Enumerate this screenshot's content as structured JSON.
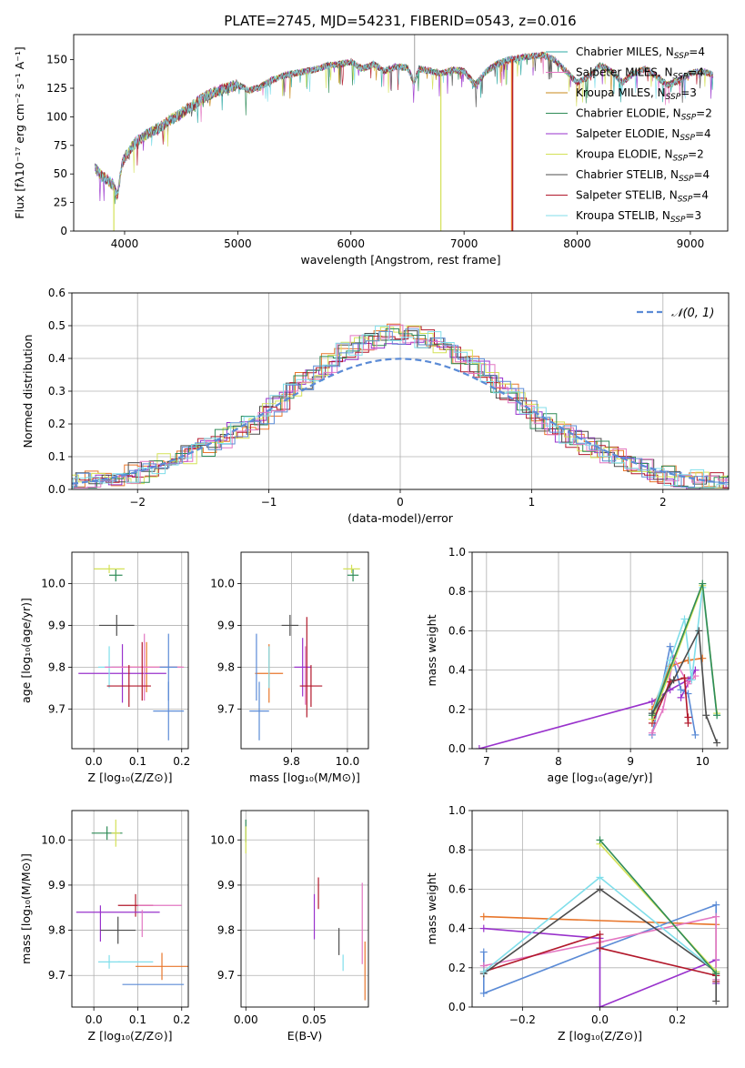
{
  "chart_data": [
    {
      "id": "spectrum",
      "type": "line",
      "title": "PLATE=2745, MJD=54231, FIBERID=0543, z=0.016",
      "xlabel": "wavelength [Angstrom, rest frame]",
      "ylabel": "Flux [fλ10⁻¹⁷ erg cm⁻² s⁻¹ A⁻¹]",
      "xlim": [
        3550,
        9330
      ],
      "ylim": [
        0,
        172
      ],
      "xticks": [
        4000,
        5000,
        6000,
        7000,
        8000,
        9000
      ],
      "yticks": [
        0,
        25,
        50,
        75,
        100,
        125,
        150
      ],
      "grid": false,
      "legend": "upper right",
      "spectrum_x": [
        3740,
        3800,
        3850,
        3900,
        3935,
        3980,
        4050,
        4100,
        4200,
        4300,
        4400,
        4500,
        4600,
        4700,
        4800,
        4900,
        5000,
        5100,
        5200,
        5300,
        5400,
        5500,
        5600,
        5700,
        5800,
        5900,
        6000,
        6100,
        6200,
        6300,
        6400,
        6500,
        6560,
        6600,
        6700,
        6800,
        6900,
        7000,
        7100,
        7200,
        7300,
        7400,
        7500,
        7600,
        7700,
        7800,
        7900,
        8000,
        8100,
        8200,
        8300,
        8400,
        8500,
        8600,
        8700,
        8800,
        8900,
        9000,
        9100,
        9200
      ],
      "spectrum_y": [
        55,
        48,
        45,
        40,
        30,
        60,
        72,
        78,
        85,
        90,
        97,
        103,
        110,
        117,
        122,
        125,
        128,
        123,
        126,
        132,
        136,
        138,
        140,
        142,
        145,
        146,
        148,
        142,
        146,
        140,
        144,
        143,
        130,
        142,
        140,
        138,
        141,
        140,
        128,
        140,
        147,
        150,
        152,
        153,
        154,
        150,
        140,
        130,
        135,
        145,
        140,
        130,
        138,
        142,
        135,
        128,
        132,
        138,
        140,
        137
      ],
      "series": [
        {
          "name": "Chabrier MILES, N",
          "sub": "SSP",
          "suffix": "=4",
          "color": "#2ca9a4"
        },
        {
          "name": "Salpeter MILES, N",
          "sub": "SSP",
          "suffix": "=4",
          "color": "#e377c2"
        },
        {
          "name": "Kroupa MILES, N",
          "sub": "SSP",
          "suffix": "=3",
          "color": "#c98a1a"
        },
        {
          "name": "Chabrier ELODIE, N",
          "sub": "SSP",
          "suffix": "=2",
          "color": "#2e8b57"
        },
        {
          "name": "Salpeter ELODIE, N",
          "sub": "SSP",
          "suffix": "=4",
          "color": "#9932cc"
        },
        {
          "name": "Kroupa ELODIE, N",
          "sub": "SSP",
          "suffix": "=2",
          "color": "#d4e157"
        },
        {
          "name": "Chabrier STELIB, N",
          "sub": "SSP",
          "suffix": "=4",
          "color": "#4d4d4d"
        },
        {
          "name": "Salpeter STELIB, N",
          "sub": "SSP",
          "suffix": "=4",
          "color": "#b2182b"
        },
        {
          "name": "Kroupa STELIB, N",
          "sub": "SSP",
          "suffix": "=3",
          "color": "#80deea"
        }
      ],
      "drops": [
        {
          "x": 3905,
          "color": "#d4e157"
        },
        {
          "x": 6795,
          "color": "#d4e157"
        },
        {
          "x": 7420,
          "color": "#e8762b"
        },
        {
          "x": 7430,
          "color": "#b2182b"
        }
      ]
    },
    {
      "id": "residuals",
      "type": "histogram",
      "xlabel": "(data-model)/error",
      "ylabel": "Normed distribution",
      "xlim": [
        -2.5,
        2.5
      ],
      "ylim": [
        0,
        0.6
      ],
      "xticks": [
        -2,
        -1,
        0,
        1,
        2
      ],
      "xtick_labels": [
        "−2",
        "−1",
        "0",
        "1",
        "2"
      ],
      "yticks": [
        0.0,
        0.1,
        0.2,
        0.3,
        0.4,
        0.5,
        0.6
      ],
      "ytick_labels": [
        "0.0",
        "0.1",
        "0.2",
        "0.3",
        "0.4",
        "0.5",
        "0.6"
      ],
      "grid": true,
      "legend": {
        "label": "𝒩(0, 1)",
        "placement": "upper right",
        "color": "#5b8bd6"
      },
      "bin_width": 0.1,
      "histograms": [
        {
          "color": "#e8762b",
          "offset": 0.0,
          "seed": 1
        },
        {
          "color": "#9932cc",
          "offset": -0.02,
          "seed": 2
        },
        {
          "color": "#4d4d4d",
          "offset": 0.03,
          "seed": 3
        },
        {
          "color": "#b2182b",
          "offset": -0.04,
          "seed": 4
        },
        {
          "color": "#d4e157",
          "offset": 0.05,
          "seed": 5
        },
        {
          "color": "#2e8b57",
          "offset": -0.01,
          "seed": 6
        },
        {
          "color": "#e377c2",
          "offset": 0.02,
          "seed": 7
        },
        {
          "color": "#5b8bd6",
          "offset": 0.04,
          "seed": 8
        },
        {
          "color": "#80deea",
          "offset": 0.01,
          "seed": 9
        }
      ]
    },
    {
      "id": "age-vs-Z",
      "type": "errorbar",
      "xlabel": "Z [log₁₀(Z/Z⊙)]",
      "ylabel": "age  [log₁₀(age/yr)]",
      "xlim": [
        -0.05,
        0.215
      ],
      "ylim": [
        9.605,
        10.075
      ],
      "xticks": [
        0.0,
        0.1,
        0.2
      ],
      "xtick_labels": [
        "0.0",
        "0.1",
        "0.2"
      ],
      "yticks": [
        9.7,
        9.8,
        9.9,
        10.0
      ],
      "ytick_labels": [
        "9.7",
        "9.8",
        "9.9",
        "10.0"
      ],
      "grid": true,
      "points": [
        {
          "x": 0.05,
          "xerr": 0.015,
          "y": 10.02,
          "yerr": 0.015,
          "color": "#2e8b57"
        },
        {
          "x": 0.035,
          "xerr": 0.035,
          "y": 10.035,
          "yerr": 0.01,
          "color": "#d4e157"
        },
        {
          "x": 0.052,
          "xerr": 0.04,
          "y": 9.9,
          "yerr": 0.025,
          "color": "#4d4d4d"
        },
        {
          "x": 0.12,
          "xerr": 0.08,
          "y": 9.8,
          "yerr": 0.06,
          "color": "#e8762b"
        },
        {
          "x": 0.065,
          "xerr": 0.1,
          "y": 9.785,
          "yerr": 0.07,
          "color": "#9932cc"
        },
        {
          "x": 0.035,
          "xerr": 0.025,
          "y": 9.8,
          "yerr": 0.05,
          "color": "#80deea"
        },
        {
          "x": 0.115,
          "xerr": 0.09,
          "y": 9.8,
          "yerr": 0.08,
          "color": "#e377c2"
        },
        {
          "x": 0.17,
          "xerr": 0.035,
          "y": 9.695,
          "yerr": 0.07,
          "color": "#5b8bd6"
        },
        {
          "x": 0.17,
          "xerr": 0.02,
          "y": 9.8,
          "yerr": 0.08,
          "color": "#5b8bd6"
        },
        {
          "x": 0.08,
          "xerr": 0.05,
          "y": 9.755,
          "yerr": 0.05,
          "color": "#b2182b"
        },
        {
          "x": 0.11,
          "xerr": 0.0,
          "y": 9.79,
          "yerr": 0.07,
          "color": "#b2182b"
        }
      ]
    },
    {
      "id": "age-vs-mass",
      "type": "errorbar",
      "xlabel": "mass [log₁₀(M/M⊙)]",
      "ylabel": "",
      "xlim": [
        9.62,
        10.075
      ],
      "ylim": [
        9.605,
        10.075
      ],
      "xticks": [
        9.8,
        10.0
      ],
      "xtick_labels": [
        "9.8",
        "10.0"
      ],
      "yticks": [
        9.7,
        9.8,
        9.9,
        10.0
      ],
      "ytick_labels": [
        "9.7",
        "9.8",
        "9.9",
        "10.0"
      ],
      "grid": true,
      "points": [
        {
          "x": 10.02,
          "xerr": 0.02,
          "y": 10.02,
          "yerr": 0.015,
          "color": "#2e8b57"
        },
        {
          "x": 10.015,
          "xerr": 0.03,
          "y": 10.035,
          "yerr": 0.01,
          "color": "#d4e157"
        },
        {
          "x": 9.795,
          "xerr": 0.03,
          "y": 9.9,
          "yerr": 0.025,
          "color": "#4d4d4d"
        },
        {
          "x": 9.72,
          "xerr": 0.05,
          "y": 9.785,
          "yerr": 0.07,
          "color": "#e8762b"
        },
        {
          "x": 9.85,
          "xerr": 0.0,
          "y": 9.78,
          "yerr": 0.07,
          "color": "#e377c2"
        },
        {
          "x": 9.84,
          "xerr": 0.03,
          "y": 9.8,
          "yerr": 0.07,
          "color": "#9932cc"
        },
        {
          "x": 9.685,
          "xerr": 0.035,
          "y": 9.695,
          "yerr": 0.07,
          "color": "#5b8bd6"
        },
        {
          "x": 9.675,
          "xerr": 0.0,
          "y": 9.8,
          "yerr": 0.08,
          "color": "#5b8bd6"
        },
        {
          "x": 9.72,
          "xerr": 0.0,
          "y": 9.8,
          "yerr": 0.05,
          "color": "#80deea"
        },
        {
          "x": 9.87,
          "xerr": 0.04,
          "y": 9.755,
          "yerr": 0.05,
          "color": "#b2182b"
        },
        {
          "x": 9.855,
          "xerr": 0.0,
          "y": 9.8,
          "yerr": 0.12,
          "color": "#b2182b"
        }
      ]
    },
    {
      "id": "massweight-vs-age",
      "type": "line",
      "xlabel": "age  [log₁₀(age/yr)]",
      "ylabel": "mass weight",
      "xlim": [
        6.8,
        10.35
      ],
      "ylim": [
        0,
        1.0
      ],
      "xticks": [
        7,
        8,
        9,
        10
      ],
      "xtick_labels": [
        "7",
        "8",
        "9",
        "10"
      ],
      "yticks": [
        0.0,
        0.2,
        0.4,
        0.6,
        0.8,
        1.0
      ],
      "ytick_labels": [
        "0.0",
        "0.2",
        "0.4",
        "0.6",
        "0.8",
        "1.0"
      ],
      "grid": true,
      "series": [
        {
          "color": "#9932cc",
          "x": [
            6.9,
            9.3,
            9.55,
            9.8,
            9.9,
            9.7
          ],
          "y": [
            0.0,
            0.24,
            0.3,
            0.35,
            0.4,
            0.26
          ]
        },
        {
          "color": "#5b8bd6",
          "x": [
            9.3,
            9.55,
            9.7,
            9.8,
            9.9
          ],
          "y": [
            0.07,
            0.52,
            0.3,
            0.28,
            0.07
          ]
        },
        {
          "color": "#e8762b",
          "x": [
            9.3,
            9.55,
            9.8,
            10.0
          ],
          "y": [
            0.2,
            0.42,
            0.45,
            0.46
          ]
        },
        {
          "color": "#e377c2",
          "x": [
            9.3,
            9.45,
            9.6,
            9.8,
            9.9
          ],
          "y": [
            0.08,
            0.2,
            0.46,
            0.33,
            0.37
          ]
        },
        {
          "color": "#b2182b",
          "x": [
            9.3,
            9.55,
            9.75,
            9.8,
            9.8
          ],
          "y": [
            0.13,
            0.34,
            0.36,
            0.13,
            0.16
          ]
        },
        {
          "color": "#80deea",
          "x": [
            9.3,
            9.55,
            9.75,
            9.85,
            10.0,
            10.2
          ],
          "y": [
            0.18,
            0.45,
            0.66,
            0.35,
            0.82,
            0.17
          ]
        },
        {
          "color": "#d4e157",
          "x": [
            9.3,
            10.0,
            10.2
          ],
          "y": [
            0.15,
            0.83,
            0.18
          ]
        },
        {
          "color": "#2e8b57",
          "x": [
            9.3,
            10.0,
            10.2
          ],
          "y": [
            0.17,
            0.84,
            0.17
          ]
        },
        {
          "color": "#4d4d4d",
          "x": [
            9.3,
            9.6,
            9.95,
            10.05,
            10.2
          ],
          "y": [
            0.18,
            0.35,
            0.6,
            0.17,
            0.03
          ]
        }
      ]
    },
    {
      "id": "mass-vs-Z",
      "type": "errorbar",
      "xlabel": "Z [log₁₀(Z/Z⊙)]",
      "ylabel": "mass [log₁₀(M/M⊙)]",
      "xlim": [
        -0.05,
        0.215
      ],
      "ylim": [
        9.63,
        10.065
      ],
      "xticks": [
        0.0,
        0.1,
        0.2
      ],
      "xtick_labels": [
        "0.0",
        "0.1",
        "0.2"
      ],
      "yticks": [
        9.7,
        9.8,
        9.9,
        10.0
      ],
      "ytick_labels": [
        "9.7",
        "9.8",
        "9.9",
        "10.0"
      ],
      "grid": true,
      "points": [
        {
          "x": 0.03,
          "xerr": 0.035,
          "y": 10.015,
          "yerr": 0.015,
          "color": "#2e8b57"
        },
        {
          "x": 0.05,
          "xerr": 0.01,
          "y": 10.015,
          "yerr": 0.03,
          "color": "#d4e157"
        },
        {
          "x": 0.095,
          "xerr": 0.04,
          "y": 9.855,
          "yerr": 0.025,
          "color": "#b2182b"
        },
        {
          "x": 0.055,
          "xerr": 0.095,
          "y": 9.84,
          "yerr": 0.0,
          "color": "#9932cc"
        },
        {
          "x": 0.015,
          "xerr": 0.0,
          "y": 9.815,
          "yerr": 0.04,
          "color": "#9932cc"
        },
        {
          "x": 0.15,
          "xerr": 0.05,
          "y": 9.855,
          "yerr": 0.0,
          "color": "#e377c2"
        },
        {
          "x": 0.11,
          "xerr": 0.0,
          "y": 9.815,
          "yerr": 0.03,
          "color": "#e377c2"
        },
        {
          "x": 0.055,
          "xerr": 0.04,
          "y": 9.8,
          "yerr": 0.03,
          "color": "#4d4d4d"
        },
        {
          "x": 0.155,
          "xerr": 0.06,
          "y": 9.72,
          "yerr": 0.03,
          "color": "#e8762b"
        },
        {
          "x": 0.035,
          "xerr": 0.025,
          "y": 9.73,
          "yerr": 0.015,
          "color": "#80deea"
        },
        {
          "x": 0.095,
          "xerr": 0.04,
          "y": 9.73,
          "yerr": 0.0,
          "color": "#80deea"
        },
        {
          "x": 0.135,
          "xerr": 0.07,
          "y": 9.68,
          "yerr": 0.0,
          "color": "#5b8bd6"
        }
      ]
    },
    {
      "id": "mass-vs-ebv",
      "type": "errorbar",
      "xlabel": "E(B-V)",
      "ylabel": "",
      "xlim": [
        -0.0035,
        0.0895
      ],
      "ylim": [
        9.63,
        10.065
      ],
      "xticks": [
        0.0,
        0.05
      ],
      "xtick_labels": [
        "0.00",
        "0.05"
      ],
      "yticks": [
        9.7,
        9.8,
        9.9,
        10.0
      ],
      "ytick_labels": [
        "9.7",
        "9.8",
        "9.9",
        "10.0"
      ],
      "grid": true,
      "points": [
        {
          "x": 0.0,
          "xerr": 0.0,
          "y": 10.02,
          "yerr": 0.025,
          "color": "#2e8b57"
        },
        {
          "x": 0.0,
          "xerr": 0.0,
          "y": 10.0,
          "yerr": 0.03,
          "color": "#d4e157"
        },
        {
          "x": 0.05,
          "xerr": 0.0,
          "y": 9.83,
          "yerr": 0.05,
          "color": "#9932cc"
        },
        {
          "x": 0.053,
          "xerr": 0.0,
          "y": 9.882,
          "yerr": 0.035,
          "color": "#b2182b"
        },
        {
          "x": 0.068,
          "xerr": 0.0,
          "y": 9.775,
          "yerr": 0.03,
          "color": "#4d4d4d"
        },
        {
          "x": 0.071,
          "xerr": 0.0,
          "y": 9.728,
          "yerr": 0.018,
          "color": "#80deea"
        },
        {
          "x": 0.085,
          "xerr": 0.0,
          "y": 9.815,
          "yerr": 0.09,
          "color": "#e377c2"
        },
        {
          "x": 0.087,
          "xerr": 0.0,
          "y": 9.71,
          "yerr": 0.065,
          "color": "#e8762b"
        }
      ]
    },
    {
      "id": "massweight-vs-Z",
      "type": "line",
      "xlabel": "Z [log₁₀(Z/Z⊙)]",
      "ylabel": "mass weight",
      "xlim": [
        -0.33,
        0.33
      ],
      "ylim": [
        0,
        1.0
      ],
      "xticks": [
        -0.2,
        0.0,
        0.2
      ],
      "xtick_labels": [
        "−0.2",
        "0.0",
        "0.2"
      ],
      "yticks": [
        0.0,
        0.2,
        0.4,
        0.6,
        0.8,
        1.0
      ],
      "ytick_labels": [
        "0.0",
        "0.2",
        "0.4",
        "0.6",
        "0.8",
        "1.0"
      ],
      "grid": true,
      "series": [
        {
          "color": "#e8762b",
          "x": [
            -0.3,
            0.3,
            0.3
          ],
          "y": [
            0.46,
            0.42,
            0.17
          ]
        },
        {
          "color": "#9932cc",
          "x": [
            -0.3,
            0.0,
            0.0,
            0.3,
            0.3
          ],
          "y": [
            0.4,
            0.35,
            0.0,
            0.24,
            0.12
          ]
        },
        {
          "color": "#5b8bd6",
          "x": [
            -0.3,
            -0.3,
            0.0,
            0.3,
            0.3
          ],
          "y": [
            0.28,
            0.07,
            0.3,
            0.52,
            0.16
          ]
        },
        {
          "color": "#e377c2",
          "x": [
            -0.3,
            0.0,
            0.3,
            0.3
          ],
          "y": [
            0.21,
            0.33,
            0.46,
            0.14
          ]
        },
        {
          "color": "#b2182b",
          "x": [
            -0.3,
            0.0,
            0.0,
            0.3,
            0.3
          ],
          "y": [
            0.18,
            0.37,
            0.3,
            0.16,
            0.13
          ]
        },
        {
          "color": "#4d4d4d",
          "x": [
            -0.3,
            0.0,
            0.3,
            0.3
          ],
          "y": [
            0.17,
            0.6,
            0.18,
            0.03
          ]
        },
        {
          "color": "#80deea",
          "x": [
            -0.3,
            0.0,
            0.3
          ],
          "y": [
            0.18,
            0.66,
            0.18
          ]
        },
        {
          "color": "#d4e157",
          "x": [
            0.0,
            0.3
          ],
          "y": [
            0.83,
            0.18
          ]
        },
        {
          "color": "#2e8b57",
          "x": [
            0.0,
            0.3
          ],
          "y": [
            0.85,
            0.17
          ]
        }
      ]
    }
  ]
}
